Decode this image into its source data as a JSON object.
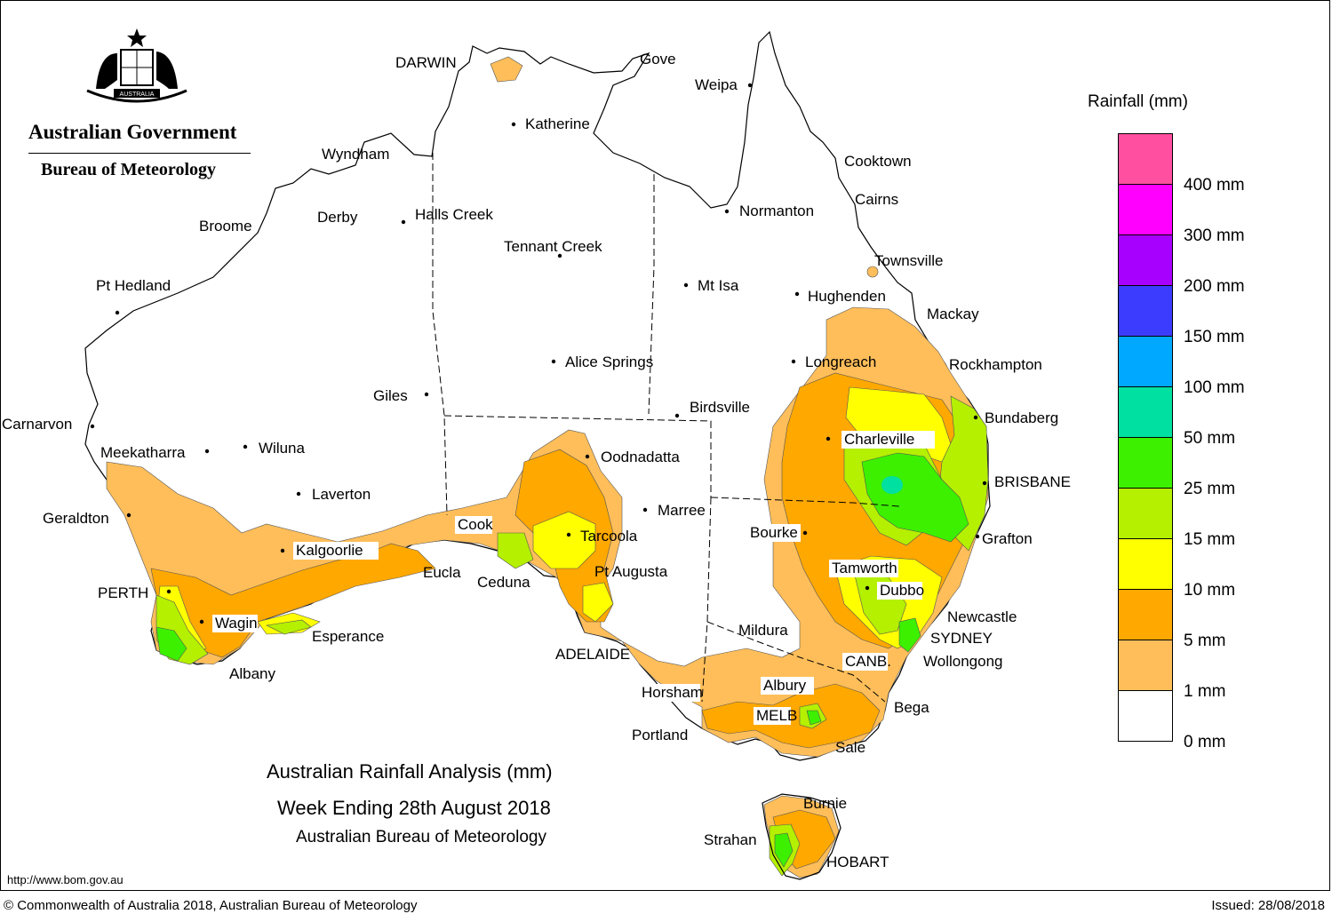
{
  "header": {
    "government": "Australian Government",
    "bureau": "Bureau of Meteorology",
    "crest_icon": "commonwealth-coat-of-arms",
    "crest_motto": "AUSTRALIA"
  },
  "title": {
    "line1": "Australian Rainfall Analysis (mm)",
    "line2": "Week Ending 28th August 2018",
    "line3": "Australian Bureau of Meteorology"
  },
  "legend": {
    "title": "Rainfall (mm)",
    "bins": [
      {
        "color": "#ff4fa0"
      },
      {
        "color": "#ff00ff",
        "label": "400 mm"
      },
      {
        "color": "#a800ff",
        "label": "300 mm"
      },
      {
        "color": "#3c3cff",
        "label": "200 mm"
      },
      {
        "color": "#00a8ff",
        "label": "150 mm"
      },
      {
        "color": "#00e0a0",
        "label": "100 mm"
      },
      {
        "color": "#3cf000",
        "label": "50 mm"
      },
      {
        "color": "#b4f000",
        "label": "25 mm"
      },
      {
        "color": "#ffff00",
        "label": "15 mm"
      },
      {
        "color": "#ffa800",
        "label": "10 mm"
      },
      {
        "color": "#ffbe5a",
        "label": "5 mm"
      },
      {
        "color": "#ffffff",
        "label": "1 mm"
      },
      {
        "label": "0 mm"
      }
    ]
  },
  "colors": {
    "r1": "#ffbe5a",
    "r5": "#ffa800",
    "r10": "#ffff00",
    "r15": "#b4f000",
    "r25": "#3cf000",
    "r50": "#00e0a0"
  },
  "places": {
    "darwin": "DARWIN",
    "gove": "Gove",
    "weipa": "Weipa",
    "katherine": "Katherine",
    "wyndham": "Wyndham",
    "cooktown": "Cooktown",
    "cairns": "Cairns",
    "normanton": "Normanton",
    "derby": "Derby",
    "halls_creek": "Halls Creek",
    "broome": "Broome",
    "tennant_creek": "Tennant Creek",
    "townsville": "Townsville",
    "pt_hedland": "Pt Hedland",
    "mt_isa": "Mt Isa",
    "hughenden": "Hughenden",
    "mackay": "Mackay",
    "alice_springs": "Alice Springs",
    "longreach": "Longreach",
    "rockhampton": "Rockhampton",
    "giles": "Giles",
    "birdsville": "Birdsville",
    "bundaberg": "Bundaberg",
    "carnarvon": "Carnarvon",
    "charleville": "Charleville",
    "meekatharra": "Meekatharra",
    "wiluna": "Wiluna",
    "oodnadatta": "Oodnadatta",
    "brisbane": "BRISBANE",
    "laverton": "Laverton",
    "marree": "Marree",
    "geraldton": "Geraldton",
    "cook": "Cook",
    "bourke": "Bourke",
    "tarcoola": "Tarcoola",
    "grafton": "Grafton",
    "kalgoorlie": "Kalgoorlie",
    "tamworth": "Tamworth",
    "pt_augusta": "Pt Augusta",
    "eucla": "Eucla",
    "ceduna": "Ceduna",
    "perth": "PERTH",
    "dubbo": "Dubbo",
    "newcastle": "Newcastle",
    "wagin": "Wagin",
    "mildura": "Mildura",
    "esperance": "Esperance",
    "sydney": "SYDNEY",
    "adelaide": "ADELAIDE",
    "canberra": "CANB.",
    "wollongong": "Wollongong",
    "albany": "Albany",
    "albury": "Albury",
    "horsham": "Horsham",
    "bega": "Bega",
    "melbourne": "MELB",
    "portland": "Portland",
    "sale": "Sale",
    "burnie": "Burnie",
    "strahan": "Strahan",
    "hobart": "HOBART"
  },
  "footer": {
    "url": "http://www.bom.gov.au",
    "copyright": "© Commonwealth of Australia 2018, Australian Bureau of Meteorology",
    "issued": "Issued: 28/08/2018"
  }
}
